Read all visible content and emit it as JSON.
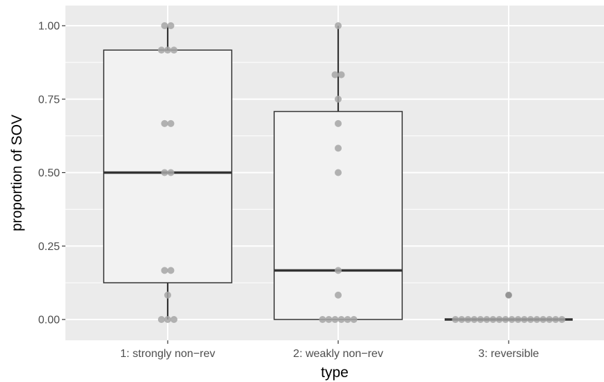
{
  "chart_data": {
    "type": "boxplot",
    "xlabel": "type",
    "ylabel": "proportion of SOV",
    "categories": [
      "1: strongly non−rev",
      "2: weakly non−rev",
      "3: reversible"
    ],
    "ylim": [
      -0.065,
      1.07
    ],
    "yticks": [
      0.0,
      0.25,
      0.5,
      0.75,
      1.0
    ],
    "ytick_labels": [
      "0.00",
      "0.25",
      "0.50",
      "0.75",
      "1.00"
    ],
    "grid": true,
    "boxes": [
      {
        "category": "1: strongly non−rev",
        "min": 0.0,
        "q1": 0.125,
        "median": 0.5,
        "q3": 0.917,
        "max": 1.0
      },
      {
        "category": "2: weakly non−rev",
        "min": 0.0,
        "q1": 0.0,
        "median": 0.167,
        "q3": 0.708,
        "max": 1.0
      },
      {
        "category": "3: reversible",
        "min": 0.0,
        "q1": 0.0,
        "median": 0.0,
        "q3": 0.0,
        "max": 0.0
      }
    ],
    "points": [
      [
        0.0,
        0.0,
        0.0,
        0.083,
        0.167,
        0.167,
        0.5,
        0.5,
        0.667,
        0.667,
        0.917,
        0.917,
        0.917,
        1.0,
        1.0
      ],
      [
        0.0,
        0.0,
        0.0,
        0.0,
        0.0,
        0.0,
        0.083,
        0.167,
        0.5,
        0.583,
        0.667,
        0.75,
        0.833,
        0.833,
        1.0
      ],
      [
        0.0,
        0.0,
        0.0,
        0.0,
        0.0,
        0.0,
        0.0,
        0.0,
        0.0,
        0.0,
        0.0,
        0.0,
        0.0,
        0.0,
        0.0,
        0.0,
        0.0,
        0.0,
        0.083
      ]
    ],
    "outliers": [
      [],
      [],
      [
        0.083
      ]
    ]
  },
  "colors": {
    "panel_background": "#ebebeb",
    "grid_major": "#ffffff",
    "box_fill": "#f2f2f2",
    "box_line": "#333333",
    "point": "#a6a6a6",
    "outlier": "#333333"
  }
}
